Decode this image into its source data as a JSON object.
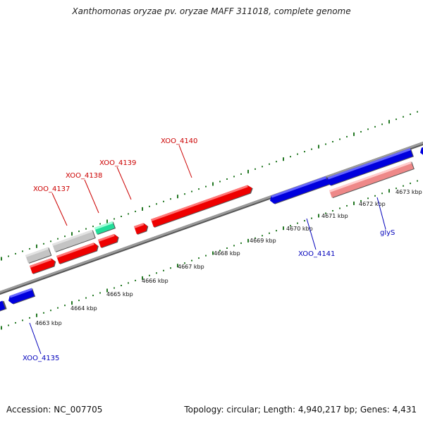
{
  "header": {
    "title": "Xanthomonas oryzae pv. oryzae MAFF 311018, complete genome"
  },
  "footer": {
    "accession": "Accession: NC_007705",
    "summary": "Topology: circular; Length: 4,940,217 bp; Genes: 4,431"
  },
  "colors": {
    "forward_strand_gene": "#ee0000",
    "reverse_strand_gene": "#0000dd",
    "pseudo_gene_grey": "#bbbbbb",
    "rna_gene_green": "#22dd99",
    "trna_gene_pink": "#ee8888",
    "backbone": "#888888",
    "ruler_ticks": "#227722",
    "forward_label": "#cc0000",
    "reverse_label": "#0000bb"
  },
  "diagram": {
    "scale_labels": [
      "4663 kbp",
      "4664 kbp",
      "4665 kbp",
      "4666 kbp",
      "4667 kbp",
      "4668 kbp",
      "4669 kbp",
      "4670 kbp",
      "4671 kbp",
      "4672 kbp",
      "4673 kbp"
    ],
    "forward_gene_labels": [
      "XOO_4137",
      "XOO_4138",
      "XOO_4139",
      "XOO_4140"
    ],
    "reverse_gene_labels": [
      "XOO_4135",
      "XOO_4141",
      "glyS"
    ]
  }
}
